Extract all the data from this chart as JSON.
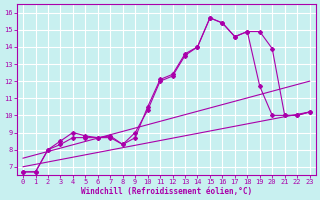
{
  "xlabel": "Windchill (Refroidissement éolien,°C)",
  "bg_color": "#c8f0f0",
  "grid_color": "#ffffff",
  "line_color": "#aa00aa",
  "xlim": [
    -0.5,
    23.5
  ],
  "ylim": [
    6.5,
    16.5
  ],
  "yticks": [
    7,
    8,
    9,
    10,
    11,
    12,
    13,
    14,
    15,
    16
  ],
  "xticks": [
    0,
    1,
    2,
    3,
    4,
    5,
    6,
    7,
    8,
    9,
    10,
    11,
    12,
    13,
    14,
    15,
    16,
    17,
    18,
    19,
    20,
    21,
    22,
    23
  ],
  "series_with_markers": [
    {
      "x": [
        0,
        1,
        2,
        3,
        4,
        5,
        6,
        7,
        8,
        9,
        10,
        11,
        12,
        13,
        14,
        15,
        16,
        17,
        18,
        19,
        20,
        21,
        22,
        23
      ],
      "y": [
        6.7,
        6.7,
        8.0,
        8.3,
        8.7,
        8.7,
        8.7,
        8.7,
        8.3,
        8.7,
        10.5,
        12.1,
        12.4,
        13.6,
        14.0,
        15.7,
        15.4,
        14.6,
        14.9,
        14.9,
        13.9,
        10.0,
        10.0,
        10.2
      ]
    },
    {
      "x": [
        0,
        1,
        2,
        3,
        4,
        5,
        6,
        7,
        8,
        9,
        10,
        11,
        12,
        13,
        14,
        15,
        16,
        17,
        18,
        19,
        20,
        21,
        22,
        23
      ],
      "y": [
        6.7,
        6.7,
        8.0,
        8.5,
        9.0,
        8.8,
        8.7,
        8.8,
        8.3,
        9.0,
        10.3,
        12.0,
        12.3,
        13.5,
        14.0,
        15.7,
        15.4,
        14.6,
        14.9,
        11.7,
        10.0,
        10.0,
        10.0,
        10.2
      ]
    }
  ],
  "series_no_markers": [
    {
      "x": [
        0,
        23
      ],
      "y": [
        7.0,
        10.2
      ]
    },
    {
      "x": [
        0,
        23
      ],
      "y": [
        7.5,
        12.0
      ]
    }
  ]
}
